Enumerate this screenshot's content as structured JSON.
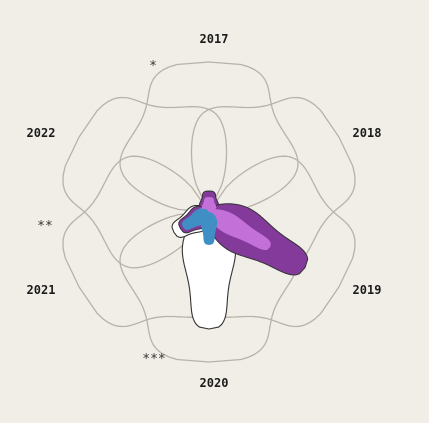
{
  "chart_data": {
    "type": "radial-petal",
    "categories": [
      "2017",
      "2018",
      "2019",
      "2020",
      "2021",
      "2022"
    ],
    "significance": [
      "*",
      "",
      "",
      "***",
      "**",
      ""
    ],
    "outline_colour": "#b7b2aa",
    "colours": {
      "large_fill": "#833a9b",
      "small_fill": "#c470d9",
      "blue_fill": "#3f8fc4",
      "white_fill": "#ffffff",
      "dark_outline": "#333333"
    },
    "series": [
      {
        "name": "",
        "values": [
          1.0,
          1.0,
          1.0,
          1.0,
          1.0,
          1.0
        ]
      },
      {
        "name": "",
        "values": [
          0.14,
          0.0,
          0.74,
          0.0,
          0.22,
          0.0
        ]
      },
      {
        "name": "",
        "values": [
          0.1,
          0.0,
          0.47,
          0.0,
          0.14,
          0.0
        ]
      },
      {
        "name": "",
        "values": [
          0.1,
          0.0,
          0.0,
          0.78,
          0.27,
          0.0
        ]
      },
      {
        "name": "",
        "values": [
          0.0,
          0.0,
          0.0,
          0.22,
          0.2,
          0.0
        ]
      }
    ]
  }
}
